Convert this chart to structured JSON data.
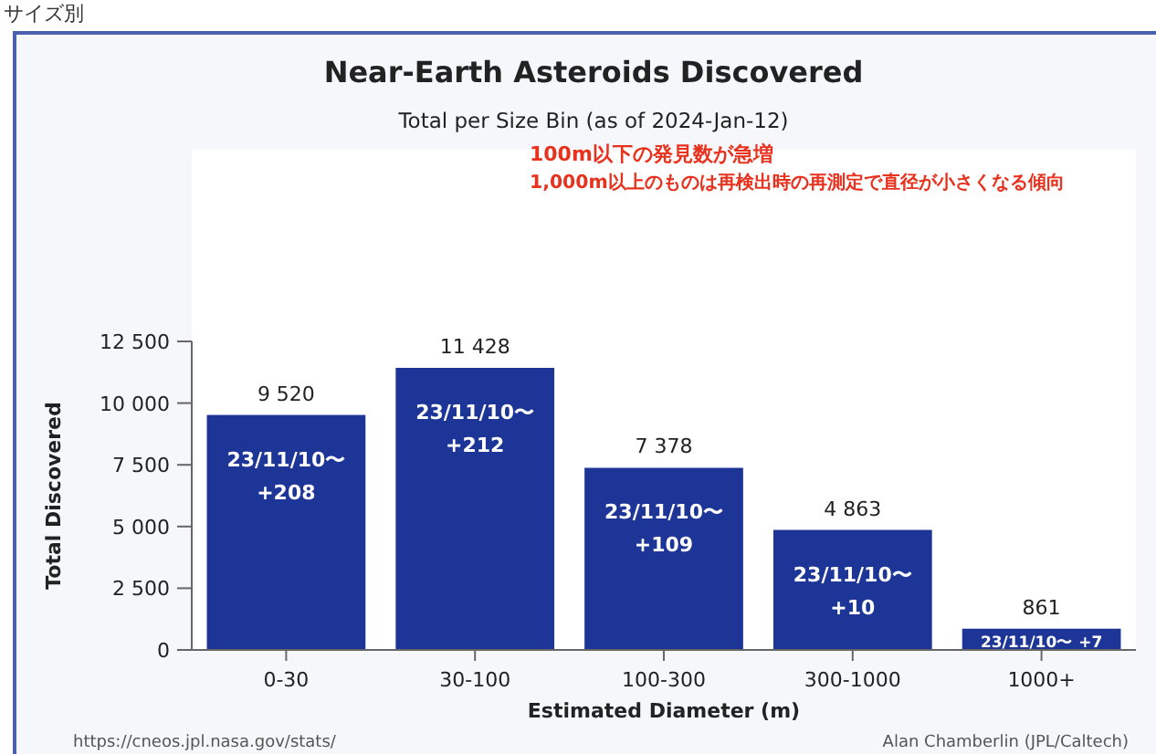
{
  "chart_data": {
    "type": "bar",
    "title": "Near-Earth Asteroids Discovered",
    "subtitle": "Total per Size Bin (as of 2024-Jan-12)",
    "xlabel": "Estimated Diameter (m)",
    "ylabel": "Total Discovered",
    "categories": [
      "0-30",
      "30-100",
      "100-300",
      "300-1000",
      "1000+"
    ],
    "values": [
      9520,
      11428,
      7378,
      4863,
      861
    ],
    "value_labels": [
      "9 520",
      "11 428",
      "7 378",
      "4 863",
      "861"
    ],
    "color": "#1d3597",
    "ylim": [
      0,
      12500
    ],
    "yticks": [
      {
        "value": 0,
        "label": "0"
      },
      {
        "value": 2500,
        "label": "2 500"
      },
      {
        "value": 5000,
        "label": "5 000"
      },
      {
        "value": 7500,
        "label": "7 500"
      },
      {
        "value": 10000,
        "label": "10 000"
      },
      {
        "value": 12500,
        "label": "12 500"
      }
    ],
    "grid": false,
    "annotations": [
      "23/11/10〜\n+208",
      "23/11/10〜\n+212",
      "23/11/10〜\n+109",
      "23/11/10〜\n+10",
      "23/11/10〜\n+7",
      "100m以下の発見数が急増",
      "1,000m以上のものは再検出時の再測定で直径が小さくなる傾向",
      "サイズ別",
      "https://cneos.jpl.nasa.gov/stats/",
      "Alan Chamberlin (JPL/Caltech)"
    ]
  }
}
